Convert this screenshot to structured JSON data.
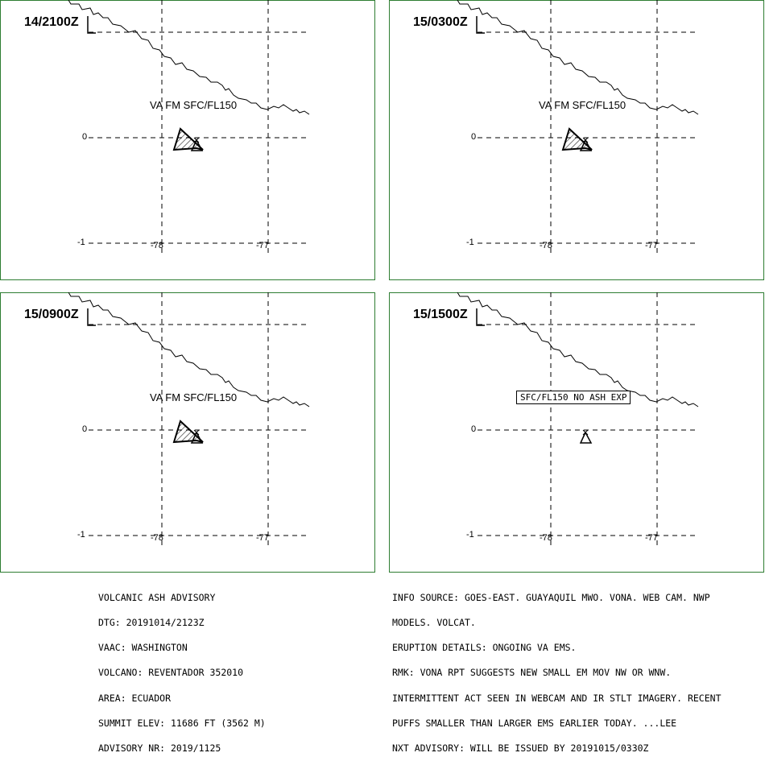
{
  "panels": [
    {
      "time": "14/2100Z",
      "va_label": "VA FM SFC/FL150",
      "ash": true
    },
    {
      "time": "15/0300Z",
      "va_label": "VA FM SFC/FL150",
      "ash": true
    },
    {
      "time": "15/0900Z",
      "va_label": "VA FM SFC/FL150",
      "ash": true
    },
    {
      "time": "15/1500Z",
      "va_label": "SFC/FL150 NO ASH EXP",
      "ash": false
    }
  ],
  "axes": {
    "lat_labels": [
      "0",
      "-1"
    ],
    "lon_labels": [
      "-78",
      "-77"
    ]
  },
  "advisory_left": [
    "VOLCANIC ASH ADVISORY",
    "DTG: 20191014/2123Z",
    "VAAC: WASHINGTON",
    "VOLCANO: REVENTADOR 352010",
    "AREA: ECUADOR",
    "SUMMIT ELEV: 11686 FT (3562 M)",
    "ADVISORY NR: 2019/1125"
  ],
  "advisory_right": [
    "INFO SOURCE: GOES-EAST. GUAYAQUIL MWO. VONA. WEB CAM. NWP",
    "MODELS. VOLCAT.",
    "ERUPTION DETAILS: ONGOING VA EMS.",
    "RMK: VONA RPT SUGGESTS NEW SMALL EM MOV NW OR WNW.",
    "INTERMITTENT ACT SEEN IN WEBCAM AND IR STLT IMAGERY. RECENT",
    "PUFFS SMALLER THAN LARGER EMS EARLIER TODAY. ...LEE",
    "NXT ADVISORY: WILL BE ISSUED BY 20191015/0330Z"
  ],
  "colors": {
    "frame": "#2e7d32",
    "line": "#000000"
  }
}
